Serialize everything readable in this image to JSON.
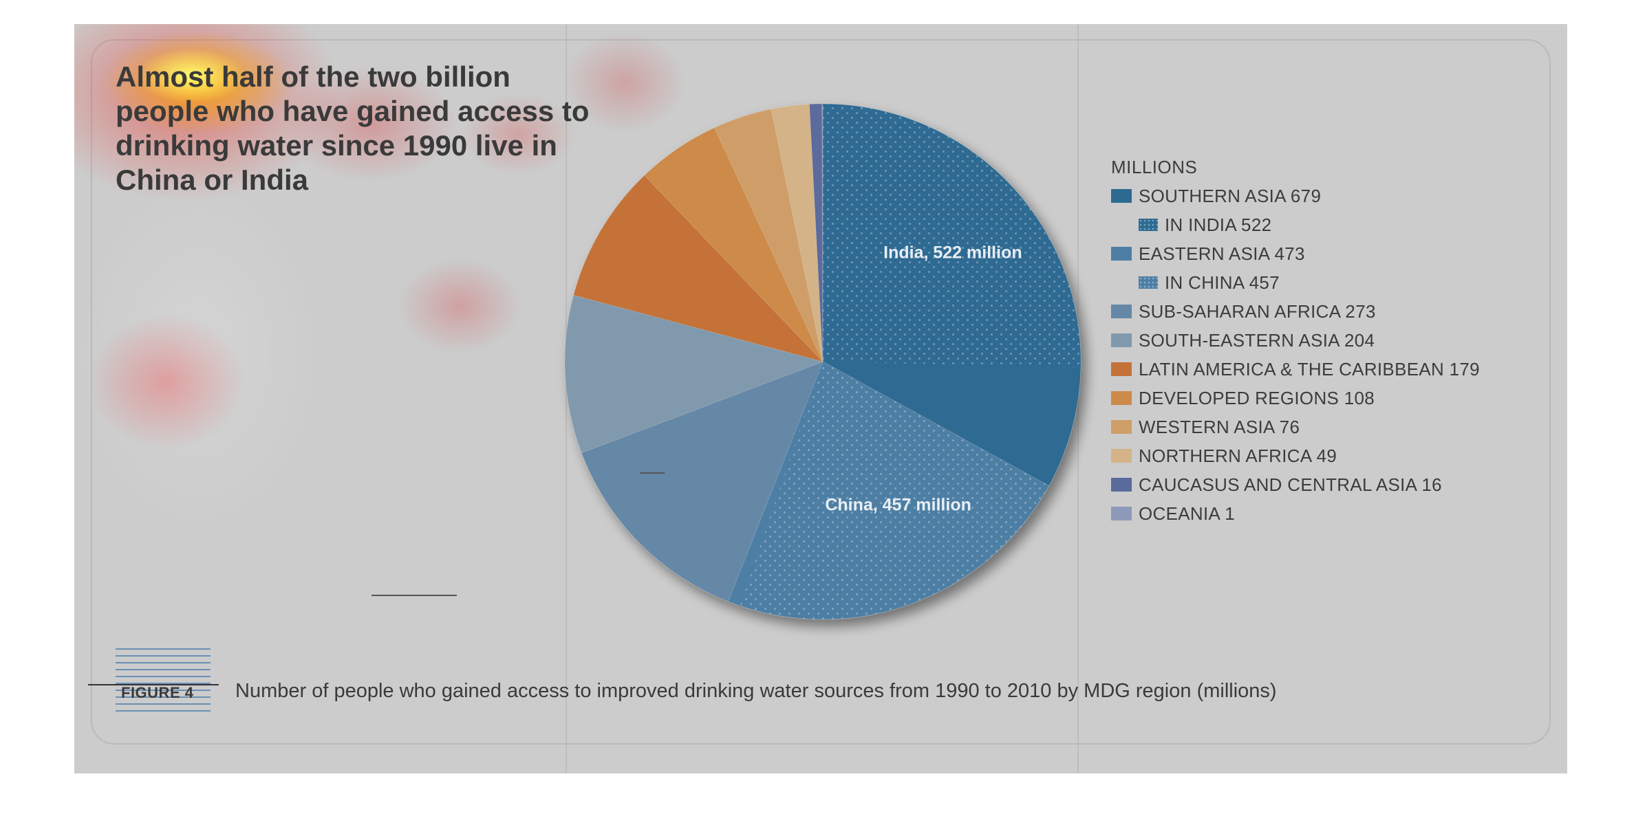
{
  "headline": "Almost half of the two billion people who have gained access to drinking water since 1990 live in China or India",
  "figure": {
    "label": "FIGURE 4",
    "caption": "Number of people who gained access to improved drinking water sources from 1990 to 2010 by MDG region (millions)"
  },
  "colors": {
    "stage_bg": "#cccccc",
    "southern_asia": "#2d6a92",
    "eastern_asia": "#4d7ea4",
    "sub_saharan_africa": "#6588a6",
    "south_eastern_asia": "#8199ad",
    "latin_america": "#c47237",
    "developed_regions": "#cd8a49",
    "western_asia": "#cf9e68",
    "northern_africa": "#d3b387",
    "caucasus": "#5b6a9c",
    "oceania": "#8e99b9"
  },
  "chart_data": {
    "type": "pie",
    "title": "",
    "unit": "MILLIONS",
    "slices": [
      {
        "name": "SOUTHERN ASIA",
        "value": 679,
        "inner": {
          "name": "IN INDIA",
          "value": 522,
          "label": "India, 522 million"
        },
        "color": "#2d6a92"
      },
      {
        "name": "EASTERN ASIA",
        "value": 473,
        "inner": {
          "name": "IN CHINA",
          "value": 457,
          "label": "China, 457 million"
        },
        "color": "#4d7ea4"
      },
      {
        "name": "SUB-SAHARAN AFRICA",
        "value": 273,
        "color": "#6588a6"
      },
      {
        "name": "SOUTH-EASTERN ASIA",
        "value": 204,
        "color": "#8199ad"
      },
      {
        "name": "LATIN AMERICA & THE CARIBBEAN",
        "value": 179,
        "color": "#c47237"
      },
      {
        "name": "DEVELOPED REGIONS",
        "value": 108,
        "color": "#cd8a49"
      },
      {
        "name": "WESTERN ASIA",
        "value": 76,
        "color": "#cf9e68"
      },
      {
        "name": "NORTHERN AFRICA",
        "value": 49,
        "color": "#d3b387"
      },
      {
        "name": "CAUCASUS AND CENTRAL ASIA",
        "value": 16,
        "color": "#5b6a9c"
      },
      {
        "name": "OCEANIA",
        "value": 1,
        "color": "#8e99b9"
      }
    ],
    "legend": [
      {
        "text": "SOUTHERN ASIA 679",
        "color": "#2d6a92",
        "sub": false,
        "dotted": false
      },
      {
        "text": "IN INDIA 522",
        "color": "#2d6a92",
        "sub": true,
        "dotted": true
      },
      {
        "text": "EASTERN ASIA 473",
        "color": "#4d7ea4",
        "sub": false,
        "dotted": false
      },
      {
        "text": "IN CHINA 457",
        "color": "#4d7ea4",
        "sub": true,
        "dotted": true
      },
      {
        "text": "SUB-SAHARAN AFRICA 273",
        "color": "#6588a6",
        "sub": false,
        "dotted": false
      },
      {
        "text": "SOUTH-EASTERN ASIA 204",
        "color": "#8199ad",
        "sub": false,
        "dotted": false
      },
      {
        "text": "LATIN AMERICA & THE CARIBBEAN 179",
        "color": "#c47237",
        "sub": false,
        "dotted": false
      },
      {
        "text": "DEVELOPED REGIONS 108",
        "color": "#cd8a49",
        "sub": false,
        "dotted": false
      },
      {
        "text": "WESTERN ASIA 76",
        "color": "#cf9e68",
        "sub": false,
        "dotted": false
      },
      {
        "text": "NORTHERN AFRICA 49",
        "color": "#d3b387",
        "sub": false,
        "dotted": false
      },
      {
        "text": "CAUCASUS AND CENTRAL ASIA 16",
        "color": "#5b6a9c",
        "sub": false,
        "dotted": false
      },
      {
        "text": "OCEANIA 1",
        "color": "#8e99b9",
        "sub": false,
        "dotted": false
      }
    ],
    "legend_placement": "right"
  }
}
